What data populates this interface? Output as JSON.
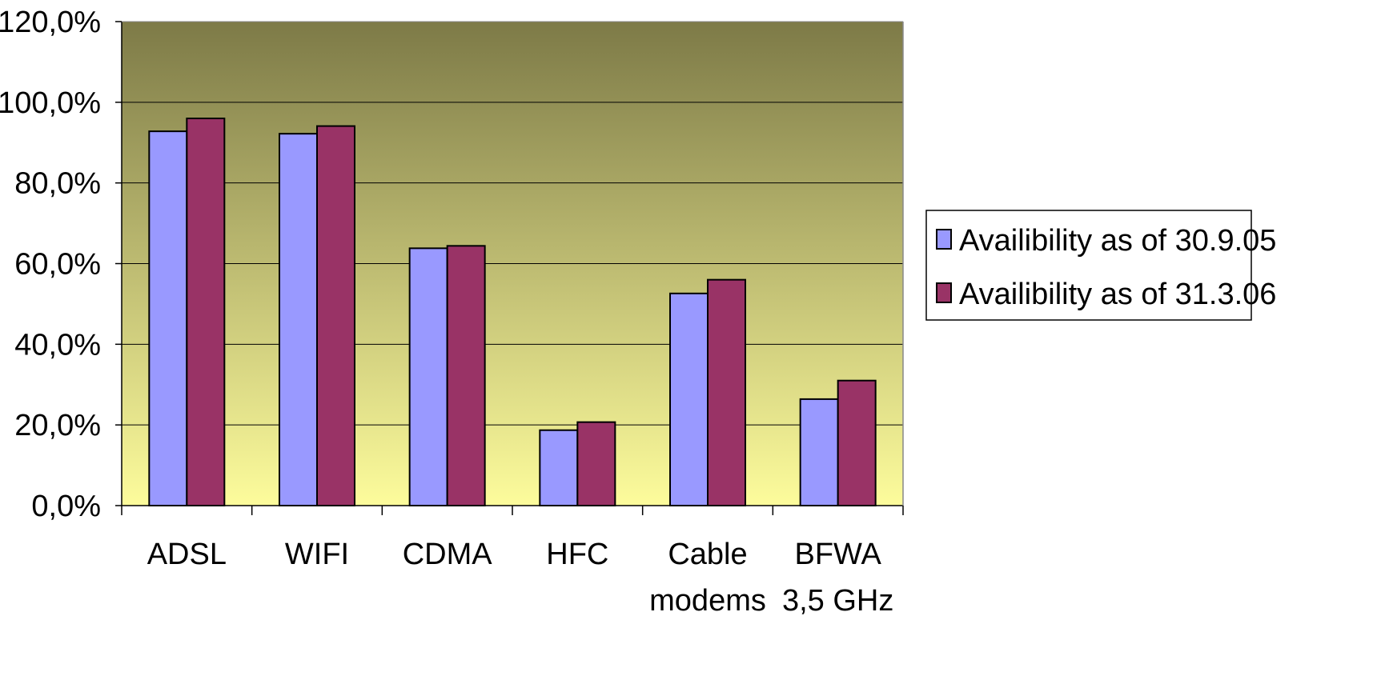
{
  "chart_data": {
    "type": "bar",
    "title": "",
    "xlabel": "",
    "ylabel": "",
    "categories": [
      [
        "ADSL"
      ],
      [
        "WIFI"
      ],
      [
        "CDMA"
      ],
      [
        "HFC"
      ],
      [
        "Cable",
        "modems"
      ],
      [
        "BFWA",
        "3,5 GHz"
      ]
    ],
    "series": [
      {
        "name": "Availibility as of 30.9.05",
        "values": [
          92.8,
          92.2,
          63.8,
          18.7,
          52.6,
          26.4
        ],
        "color": "#9999ff"
      },
      {
        "name": "Availibility as of 31.3.06",
        "values": [
          96.0,
          94.1,
          64.4,
          20.7,
          56.0,
          31.0
        ],
        "color": "#993366"
      }
    ],
    "ylim": [
      0,
      120
    ],
    "yticks": [
      "0,0%",
      "20,0%",
      "40,0%",
      "60,0%",
      "80,0%",
      "100,0%",
      "120,0%"
    ],
    "grid": true,
    "legend_position": "right",
    "background_gradient": [
      "#7d7a47",
      "#fdfc9c"
    ]
  }
}
